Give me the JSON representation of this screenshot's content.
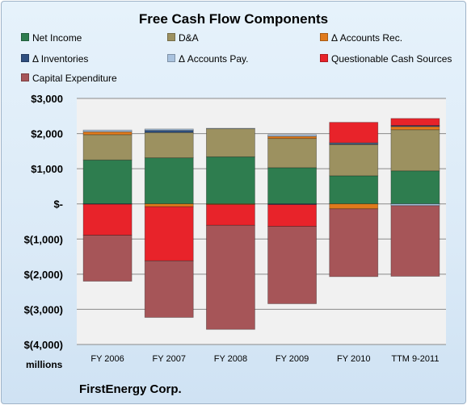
{
  "chart_data": {
    "type": "bar",
    "stacked": true,
    "title": "Free Cash Flow Components",
    "categories": [
      "FY 2006",
      "FY 2007",
      "FY 2008",
      "FY 2009",
      "FY 2010",
      "TTM 9-2011"
    ],
    "series": [
      {
        "name": "Net Income",
        "color": "#2e7d4f",
        "values": [
          1250,
          1310,
          1340,
          1030,
          800,
          940
        ]
      },
      {
        "name": "D&A",
        "color": "#9c9160",
        "values": [
          720,
          720,
          800,
          830,
          890,
          1170
        ]
      },
      {
        "name": "Δ Accounts Rec.",
        "color": "#e07a1c",
        "values": [
          80,
          -80,
          -20,
          60,
          -140,
          90
        ]
      },
      {
        "name": "Δ Inventories",
        "color": "#2f4f7f",
        "values": [
          -10,
          60,
          0,
          -20,
          30,
          30
        ]
      },
      {
        "name": "Δ Accounts Pay.",
        "color": "#a9c2de",
        "values": [
          50,
          40,
          10,
          50,
          20,
          -50
        ]
      },
      {
        "name": "Questionable Cash Sources",
        "color": "#e8232a",
        "values": [
          -880,
          -1540,
          -590,
          -620,
          580,
          200
        ]
      },
      {
        "name": "Capital Expenditure",
        "color": "#a65558",
        "values": [
          -1310,
          -1610,
          -2960,
          -2200,
          -1930,
          -2010
        ]
      }
    ],
    "y_ticks": [
      3000,
      2000,
      1000,
      0,
      -1000,
      -2000,
      -3000,
      -4000
    ],
    "y_tick_labels": [
      "$3,000",
      "$2,000",
      "$1,000",
      "$-",
      "$(1,000)",
      "$(2,000)",
      "$(3,000)",
      "$(4,000)"
    ],
    "ylim": [
      -4000,
      3000
    ],
    "grid": true,
    "legend_position": "top",
    "units_label": "millions",
    "footer": "FirstEnergy Corp."
  }
}
